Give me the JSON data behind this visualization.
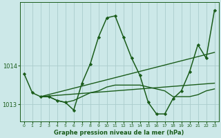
{
  "background_color": "#cce8e8",
  "grid_color": "#aacccc",
  "line_color": "#1a5c1a",
  "xlabel": "Graphe pression niveau de la mer (hPa)",
  "xlim": [
    -0.5,
    23.5
  ],
  "ylim": [
    1012.55,
    1015.65
  ],
  "yticks": [
    1013,
    1014
  ],
  "xticks": [
    0,
    1,
    2,
    3,
    4,
    5,
    6,
    7,
    8,
    9,
    10,
    11,
    12,
    13,
    14,
    15,
    16,
    17,
    18,
    19,
    20,
    21,
    22,
    23
  ],
  "series1_x": [
    0,
    1,
    2,
    3,
    4,
    5,
    6,
    7,
    8,
    9,
    10,
    11,
    12,
    13,
    14,
    15,
    16,
    17,
    18,
    19,
    20,
    21,
    22,
    23
  ],
  "series1_y": [
    1013.8,
    1013.3,
    1013.2,
    1013.2,
    1013.1,
    1013.05,
    1012.85,
    1013.55,
    1014.05,
    1014.75,
    1015.25,
    1015.3,
    1014.75,
    1014.2,
    1013.75,
    1013.05,
    1012.75,
    1012.75,
    1013.15,
    1013.35,
    1013.85,
    1014.55,
    1014.2,
    1015.45
  ],
  "series2_x": [
    2,
    23
  ],
  "series2_y": [
    1013.2,
    1014.35
  ],
  "series3_x": [
    2,
    23
  ],
  "series3_y": [
    1013.2,
    1013.55
  ],
  "series4_x": [
    2,
    3,
    4,
    5,
    6,
    7,
    8,
    9,
    10,
    11,
    12,
    13,
    14,
    15,
    16,
    17,
    18,
    19,
    20,
    21,
    22,
    23
  ],
  "series4_y": [
    1013.2,
    1013.2,
    1013.1,
    1013.05,
    1013.1,
    1013.2,
    1013.3,
    1013.35,
    1013.45,
    1013.5,
    1013.5,
    1013.5,
    1013.5,
    1013.45,
    1013.4,
    1013.35,
    1013.2,
    1013.2,
    1013.2,
    1013.25,
    1013.35,
    1013.4
  ]
}
